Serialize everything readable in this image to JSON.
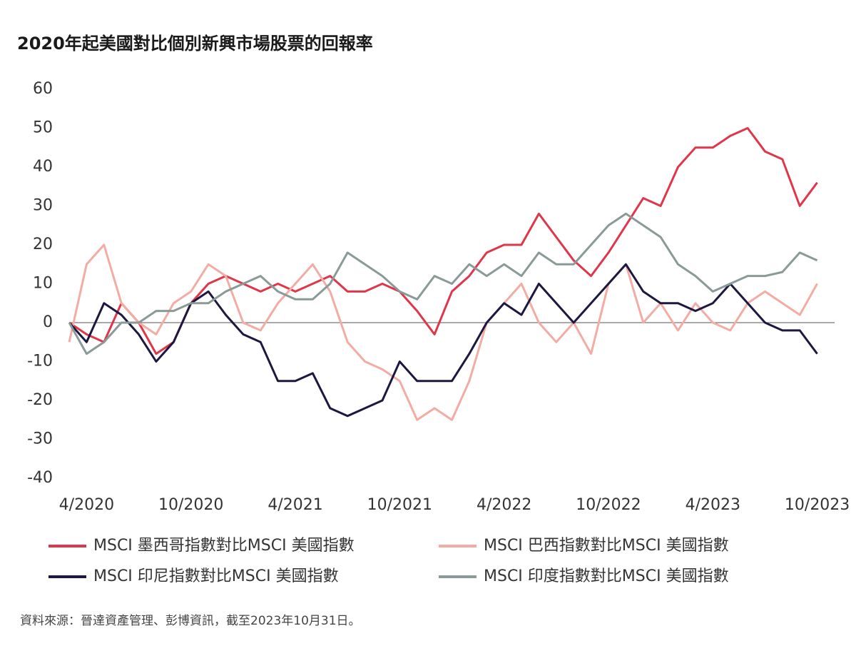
{
  "chart_data": {
    "type": "line",
    "title": "2020年起美國對比個別新興市場股票的回報率",
    "source": "資料來源：晉達資產管理、彭博資訊，截至2023年10月31日。",
    "x": [
      "2020-03",
      "2020-04",
      "2020-05",
      "2020-06",
      "2020-07",
      "2020-08",
      "2020-09",
      "2020-10",
      "2020-11",
      "2020-12",
      "2021-01",
      "2021-02",
      "2021-03",
      "2021-04",
      "2021-05",
      "2021-06",
      "2021-07",
      "2021-08",
      "2021-09",
      "2021-10",
      "2021-11",
      "2021-12",
      "2022-01",
      "2022-02",
      "2022-03",
      "2022-04",
      "2022-05",
      "2022-06",
      "2022-07",
      "2022-08",
      "2022-09",
      "2022-10",
      "2022-11",
      "2022-12",
      "2023-01",
      "2023-02",
      "2023-03",
      "2023-04",
      "2023-05",
      "2023-06",
      "2023-07",
      "2023-08",
      "2023-09",
      "2023-10"
    ],
    "series": [
      {
        "name": "MSCI 墨西哥指數對比MSCI 美國指數",
        "color": "#e0364a",
        "values": [
          0,
          -3,
          -5,
          5,
          0,
          -8,
          -5,
          5,
          10,
          12,
          10,
          8,
          10,
          8,
          10,
          12,
          8,
          8,
          10,
          8,
          3,
          -3,
          8,
          12,
          18,
          20,
          20,
          28,
          22,
          16,
          12,
          18,
          25,
          32,
          30,
          40,
          45,
          45,
          48,
          50,
          44,
          42,
          30,
          36
        ]
      },
      {
        "name": "MSCI 巴西指數對比MSCI 美國指數",
        "color": "#f2aca4",
        "values": [
          -5,
          15,
          20,
          5,
          0,
          -3,
          5,
          8,
          15,
          12,
          0,
          -2,
          5,
          10,
          15,
          8,
          -5,
          -10,
          -12,
          -15,
          -25,
          -22,
          -25,
          -15,
          0,
          5,
          10,
          0,
          -5,
          0,
          -8,
          10,
          15,
          0,
          5,
          -2,
          5,
          0,
          -2,
          5,
          8,
          5,
          2,
          10
        ]
      },
      {
        "name": "MSCI 印尼指數對比MSCI 美國指數",
        "color": "#1c1840",
        "values": [
          0,
          -5,
          5,
          2,
          -3,
          -10,
          -5,
          5,
          8,
          2,
          -3,
          -5,
          -15,
          -15,
          -13,
          -22,
          -24,
          -22,
          -20,
          -10,
          -15,
          -15,
          -15,
          -8,
          0,
          5,
          2,
          10,
          5,
          0,
          5,
          10,
          15,
          8,
          5,
          5,
          3,
          5,
          10,
          5,
          0,
          -2,
          -2,
          -8
        ]
      },
      {
        "name": "MSCI 印度指數對比MSCI 美國指數",
        "color": "#8a9a98",
        "values": [
          0,
          -8,
          -5,
          0,
          0,
          3,
          3,
          5,
          5,
          8,
          10,
          12,
          8,
          6,
          6,
          10,
          18,
          15,
          12,
          8,
          6,
          12,
          10,
          15,
          12,
          15,
          12,
          18,
          15,
          15,
          20,
          25,
          28,
          25,
          22,
          15,
          12,
          8,
          10,
          12,
          12,
          13,
          18,
          16
        ]
      }
    ],
    "xlim": [
      "2020-03",
      "2023-11"
    ],
    "xticks": [
      {
        "value": "2020-04",
        "label": "4/2020"
      },
      {
        "value": "2020-10",
        "label": "10/2020"
      },
      {
        "value": "2021-04",
        "label": "4/2021"
      },
      {
        "value": "2021-10",
        "label": "10/2021"
      },
      {
        "value": "2022-04",
        "label": "4/2022"
      },
      {
        "value": "2022-10",
        "label": "10/2022"
      },
      {
        "value": "2023-04",
        "label": "4/2023"
      },
      {
        "value": "2023-10",
        "label": "10/2023"
      }
    ],
    "ylim": [
      -40,
      60
    ],
    "yticks": [
      60,
      50,
      40,
      30,
      20,
      10,
      0,
      -10,
      -20,
      -30,
      -40
    ]
  }
}
